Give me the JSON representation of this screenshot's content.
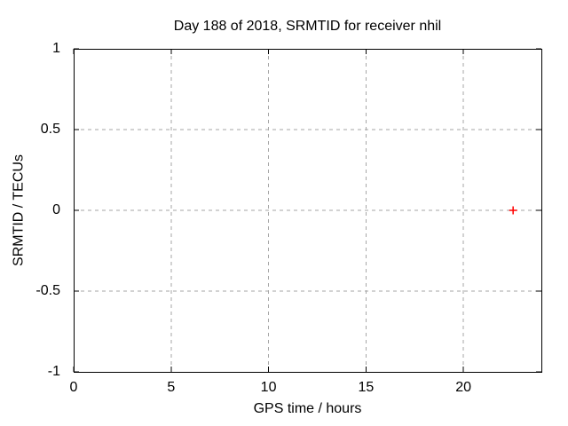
{
  "chart_data": {
    "type": "scatter",
    "title": "Day 188 of 2018, SRMTID for receiver nhil",
    "xlabel": "GPS time / hours",
    "ylabel": "SRMTID / TECUs",
    "xlim": [
      0,
      24
    ],
    "ylim": [
      -1,
      1
    ],
    "xticks": [
      0,
      5,
      10,
      15,
      20
    ],
    "xtick_labels": [
      "0",
      "5",
      "10",
      "15",
      "20"
    ],
    "yticks": [
      -1,
      -0.5,
      0,
      0.5,
      1
    ],
    "ytick_labels": [
      "-1",
      "-0.5",
      "0",
      "0.5",
      "1"
    ],
    "grid": true,
    "legend_visible": false,
    "tick_style": "inward-mirrored",
    "series": [
      {
        "name": "SRMTID",
        "marker": "plus",
        "color": "#ff0000",
        "points": [
          {
            "x": 22.55,
            "y": 0.0
          }
        ]
      }
    ],
    "colors": {
      "background": "#ffffff",
      "border": "#000000",
      "grid": "#a6a6a6",
      "text": "#000000"
    }
  }
}
